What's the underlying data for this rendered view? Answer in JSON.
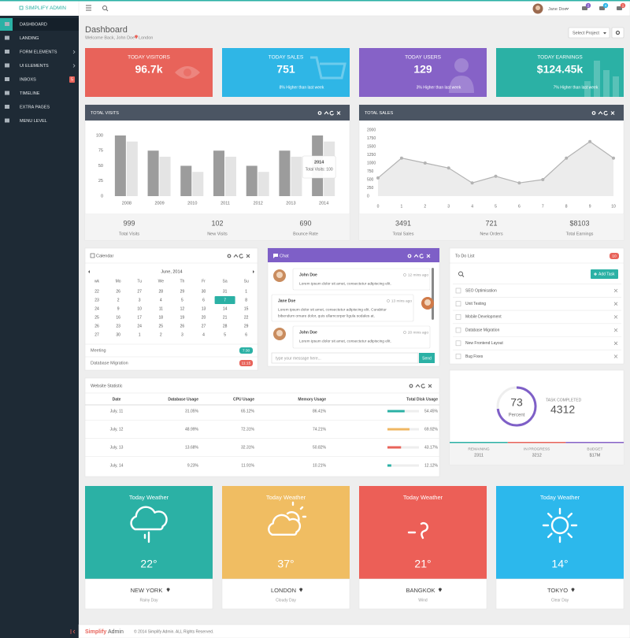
{
  "brand": "SIMPLIFY ADMIN",
  "sidebar": [
    {
      "label": "DASHBOARD"
    },
    {
      "label": "LANDING"
    },
    {
      "label": "FORM ELEMENTS"
    },
    {
      "label": "UI ELEMENTS"
    },
    {
      "label": "INBOXS",
      "badge": "5"
    },
    {
      "label": "TIMELINE"
    },
    {
      "label": "EXTRA PAGES"
    },
    {
      "label": "MENU LEVEL"
    }
  ],
  "topbar": {
    "user": "Jane Doe",
    "badges": [
      "2",
      "4",
      "1"
    ]
  },
  "header": {
    "title": "Dashboard",
    "welcome": "Welcome Back, John Doe",
    "location": "London",
    "select": "Select Project"
  },
  "stats": [
    {
      "title": "TODAY VISITORS",
      "value": "96.7k",
      "color": "#e8635a"
    },
    {
      "title": "TODAY SALES",
      "value": "751",
      "note": "8% Higher than last week",
      "color": "#2fb6e6"
    },
    {
      "title": "TODAY USERS",
      "value": "129",
      "note": "3% Higher than last week",
      "color": "#8662c7"
    },
    {
      "title": "TODAY EARNINGS",
      "value": "$124.45k",
      "note": "7% Higher than last week",
      "color": "#2bb1a5"
    }
  ],
  "visits": {
    "title": "TOTAL VISITS",
    "chart": {
      "type": "bar",
      "categories": [
        "2008",
        "2009",
        "2010",
        "2011",
        "2012",
        "2013",
        "2014"
      ],
      "series": [
        {
          "color": "#9c9c9c",
          "values": [
            100,
            75,
            50,
            75,
            50,
            75,
            100
          ]
        },
        {
          "color": "#e4e4e4",
          "values": [
            90,
            65,
            40,
            65,
            40,
            65,
            90
          ]
        }
      ],
      "ylim": [
        0,
        100
      ],
      "yticks": [
        0,
        25,
        50,
        75,
        100
      ],
      "tooltip": {
        "title": "2014",
        "text": "Total Visits: 100"
      }
    },
    "summary": [
      {
        "value": "999",
        "label": "Total Visits"
      },
      {
        "value": "102",
        "label": "New Visits"
      },
      {
        "value": "690",
        "label": "Bounce Rate"
      }
    ]
  },
  "sales": {
    "title": "TOTAL SALES",
    "chart": {
      "type": "line",
      "x": [
        0,
        1,
        2,
        3,
        4,
        5,
        6,
        7,
        8,
        9,
        10
      ],
      "values": [
        550,
        1150,
        1000,
        850,
        400,
        600,
        400,
        500,
        1150,
        1650,
        1150
      ],
      "color": "#b3b3b3",
      "xlim": [
        0,
        10
      ],
      "xticks": [
        0,
        1,
        2,
        3,
        4,
        5,
        6,
        7,
        8,
        9,
        10
      ],
      "ylim": [
        0,
        2000
      ],
      "yticks": [
        0,
        250,
        500,
        750,
        1000,
        1250,
        1500,
        1750,
        2000
      ]
    },
    "summary": [
      {
        "value": "3491",
        "label": "Total Sales"
      },
      {
        "value": "721",
        "label": "New Orders"
      },
      {
        "value": "$8103",
        "label": "Total Earnings"
      }
    ]
  },
  "calendar": {
    "title": "Calendar",
    "month": "June, 2014",
    "weekdays": [
      "wk",
      "Mo",
      "Tu",
      "We",
      "Th",
      "Fr",
      "Sa",
      "Su"
    ],
    "weeks": [
      [
        "22",
        "26",
        "27",
        "28",
        "29",
        "30",
        "31",
        "1"
      ],
      [
        "23",
        "2",
        "3",
        "4",
        "5",
        "6",
        "7",
        "8"
      ],
      [
        "24",
        "9",
        "10",
        "11",
        "12",
        "13",
        "14",
        "15"
      ],
      [
        "25",
        "16",
        "17",
        "18",
        "19",
        "20",
        "21",
        "22"
      ],
      [
        "26",
        "23",
        "24",
        "25",
        "26",
        "27",
        "28",
        "29"
      ],
      [
        "27",
        "30",
        "1",
        "2",
        "3",
        "4",
        "5",
        "6"
      ]
    ],
    "selected_day": "7",
    "events": [
      {
        "label": "Meeting",
        "time": "7:30",
        "color": "#2bb1a5"
      },
      {
        "label": "Database Migration",
        "time": "11:15",
        "color": "#e8635a"
      }
    ]
  },
  "chat": {
    "title": "Chat",
    "messages": [
      {
        "name": "John Doe",
        "time": "12 mins ago",
        "lines": [
          "Lorem ipsum dolor sit amet, consectetur adipiscing elit."
        ]
      },
      {
        "name": "Jane Doe",
        "time": "13 mins ago",
        "lines": [
          "Lorem ipsum dolor sit amet, consectetur adipiscing elit. Curabitur",
          "bibendum ornare dolor, quis ullamcorper ligula sodales at."
        ]
      },
      {
        "name": "John Doe",
        "time": "20 mins ago",
        "lines": [
          "Lorem ipsum dolor sit amet, consectetur adipiscing elit."
        ]
      }
    ],
    "placeholder": "type your message here...",
    "send": "Send"
  },
  "todo": {
    "title": "To Do List",
    "badge": "10",
    "add": "Add Task",
    "items": [
      "SEO Optimisation",
      "Unit Testing",
      "Mobile Development",
      "Database Migration",
      "New Frontend Layout",
      "Bug Fixes"
    ]
  },
  "statistic": {
    "title": "Website Statistic",
    "columns": [
      "Date",
      "Database Usage",
      "CPU Usage",
      "Memory Usage",
      "Total Disk Usage"
    ],
    "rows": [
      {
        "date": "July, 11",
        "database": "31.05%",
        "cpu": "65.12%",
        "memory": "86.41%",
        "disk": 54.45,
        "disk_label": "54.45%",
        "color": "#2bb1a5"
      },
      {
        "date": "July, 12",
        "database": "48.99%",
        "cpu": "72.31%",
        "memory": "74.21%",
        "disk": 69.92,
        "disk_label": "69.92%",
        "color": "#f0b763"
      },
      {
        "date": "July, 13",
        "database": "13.68%",
        "cpu": "32.31%",
        "memory": "50.82%",
        "disk": 43.17,
        "disk_label": "43.17%",
        "color": "#e8635a"
      },
      {
        "date": "July, 14",
        "database": "9.23%",
        "cpu": "11.91%",
        "memory": "10.21%",
        "disk": 12.12,
        "disk_label": "12.12%",
        "color": "#2bb1a5"
      }
    ]
  },
  "task": {
    "percent": 73,
    "percent_label": "Percent",
    "label": "TASK COMPLETED",
    "value": "4312",
    "breakdown": [
      {
        "label": "REMAINING",
        "value": "2311",
        "color": "#2bb1a5"
      },
      {
        "label": "IN PROGRESS",
        "value": "3212",
        "color": "#e8635a"
      },
      {
        "label": "BUDGET",
        "value": "$17M",
        "color": "#8662c7"
      }
    ]
  },
  "weather": [
    {
      "title": "Today Weather",
      "temp": "22°",
      "city": "NEW YORK",
      "condition": "Rainy Day",
      "color": "#2bb1a5"
    },
    {
      "title": "Today Weather",
      "temp": "37°",
      "city": "LONDON",
      "condition": "Cloudy Day",
      "color": "#f0bd62"
    },
    {
      "title": "Today Weather",
      "temp": "21°",
      "city": "BANGKOK",
      "condition": "Wind",
      "color": "#ec5f57"
    },
    {
      "title": "Today Weather",
      "temp": "14°",
      "city": "TOKYO",
      "condition": "Clear Day",
      "color": "#2cb8ec"
    }
  ],
  "footer": {
    "brand_first": "Simplify",
    "brand_second": "Admin",
    "copyright": "© 2014 Simplify Admin. ALL Rights Reserved."
  }
}
